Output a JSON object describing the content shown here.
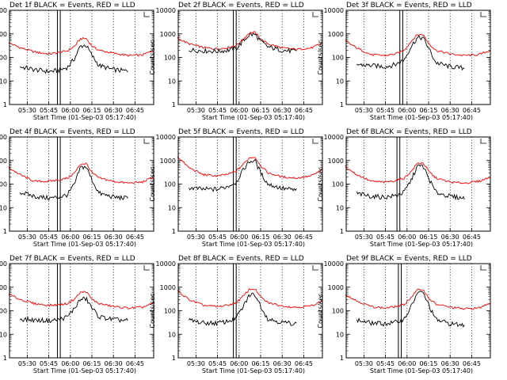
{
  "figure": {
    "ylabel": "Counts/sec",
    "xlabel": "Start Time (01-Sep-03 05:17:40)",
    "x_ticks": [
      "05:30",
      "05:45",
      "06:00",
      "06:15",
      "06:30",
      "06:45"
    ],
    "y_ticks": [
      "1",
      "10",
      "100",
      "1000",
      "10000"
    ],
    "colors": {
      "events": "#000000",
      "lld": "#ff0000",
      "axes": "#000000",
      "background": "#ffffff"
    }
  },
  "chart_data": [
    {
      "type": "line",
      "title": "Det 1f BLACK = Events, RED = LLD",
      "xlabel": "Start Time (01-Sep-03 05:17:40)",
      "ylabel": "Counts/sec",
      "yscale": "log",
      "ylim": [
        1,
        10000
      ],
      "xlim": [
        "05:17:40",
        "06:58"
      ],
      "marker_lines": [
        "05:51",
        "05:53"
      ],
      "series": [
        {
          "name": "LLD",
          "color": "#ff0000",
          "x": [
            "05:17",
            "05:25",
            "05:35",
            "05:45",
            "05:52",
            "05:58",
            "06:03",
            "06:07",
            "06:11",
            "06:15",
            "06:20",
            "06:30",
            "06:40",
            "06:50",
            "06:58"
          ],
          "values": [
            420,
            260,
            170,
            140,
            160,
            190,
            300,
            620,
            640,
            300,
            200,
            150,
            120,
            125,
            200
          ]
        },
        {
          "name": "Events",
          "color": "#000000",
          "x": [
            "05:25",
            "05:35",
            "05:45",
            "05:52",
            "05:58",
            "06:03",
            "06:07",
            "06:11",
            "06:15",
            "06:20",
            "06:30",
            "06:40"
          ],
          "values": [
            40,
            30,
            25,
            28,
            38,
            90,
            300,
            330,
            120,
            45,
            30,
            26
          ]
        }
      ]
    },
    {
      "type": "line",
      "title": "Det 2f BLACK = Events, RED = LLD",
      "xlabel": "Start Time (01-Sep-03 05:17:40)",
      "ylabel": "Counts/sec",
      "yscale": "log",
      "ylim": [
        1,
        10000
      ],
      "xlim": [
        "05:17:40",
        "06:58"
      ],
      "marker_lines": [
        "05:56",
        "05:58"
      ],
      "series": [
        {
          "name": "LLD",
          "color": "#ff0000",
          "x": [
            "05:17",
            "05:25",
            "05:35",
            "05:45",
            "05:52",
            "05:58",
            "06:03",
            "06:07",
            "06:11",
            "06:15",
            "06:20",
            "06:30",
            "06:40",
            "06:50",
            "06:58"
          ],
          "values": [
            650,
            380,
            260,
            230,
            260,
            320,
            600,
            1100,
            1150,
            600,
            380,
            250,
            220,
            250,
            400
          ]
        },
        {
          "name": "Events",
          "color": "#000000",
          "x": [
            "05:25",
            "05:35",
            "05:45",
            "05:52",
            "05:58",
            "06:03",
            "06:07",
            "06:11",
            "06:15",
            "06:20",
            "06:30",
            "06:40"
          ],
          "values": [
            210,
            190,
            180,
            200,
            240,
            500,
            900,
            950,
            480,
            280,
            200,
            180
          ]
        }
      ]
    },
    {
      "type": "line",
      "title": "Det 3f BLACK = Events, RED = LLD",
      "xlabel": "Start Time (01-Sep-03 05:17:40)",
      "ylabel": "Counts/sec",
      "yscale": "log",
      "ylim": [
        1,
        10000
      ],
      "xlim": [
        "05:17:40",
        "06:58"
      ],
      "marker_lines": [
        "05:55",
        "05:57"
      ],
      "series": [
        {
          "name": "LLD",
          "color": "#ff0000",
          "x": [
            "05:17",
            "05:25",
            "05:35",
            "05:45",
            "05:52",
            "05:58",
            "06:03",
            "06:07",
            "06:11",
            "06:15",
            "06:20",
            "06:30",
            "06:40",
            "06:50",
            "06:58"
          ],
          "values": [
            500,
            250,
            130,
            120,
            140,
            200,
            500,
            900,
            950,
            400,
            200,
            140,
            120,
            130,
            200
          ]
        },
        {
          "name": "Events",
          "color": "#000000",
          "x": [
            "05:25",
            "05:35",
            "05:45",
            "05:52",
            "05:58",
            "06:03",
            "06:07",
            "06:11",
            "06:15",
            "06:20",
            "06:30",
            "06:40"
          ],
          "values": [
            50,
            45,
            40,
            50,
            80,
            300,
            650,
            700,
            250,
            60,
            40,
            35
          ]
        }
      ]
    },
    {
      "type": "line",
      "title": "Det 4f BLACK = Events, RED = LLD",
      "xlabel": "Start Time (01-Sep-03 05:17:40)",
      "ylabel": "Counts/sec",
      "yscale": "log",
      "ylim": [
        1,
        10000
      ],
      "xlim": [
        "05:17:40",
        "06:58"
      ],
      "marker_lines": [
        "05:51",
        "05:53"
      ],
      "series": [
        {
          "name": "LLD",
          "color": "#ff0000",
          "x": [
            "05:17",
            "05:25",
            "05:35",
            "05:45",
            "05:52",
            "05:58",
            "06:03",
            "06:07",
            "06:11",
            "06:15",
            "06:20",
            "06:30",
            "06:40",
            "06:50",
            "06:58"
          ],
          "values": [
            500,
            250,
            130,
            130,
            150,
            180,
            300,
            700,
            750,
            300,
            180,
            130,
            110,
            120,
            200
          ]
        },
        {
          "name": "Events",
          "color": "#000000",
          "x": [
            "05:25",
            "05:35",
            "05:45",
            "05:52",
            "05:58",
            "06:03",
            "06:07",
            "06:11",
            "06:15",
            "06:20",
            "06:30",
            "06:40"
          ],
          "values": [
            45,
            30,
            25,
            28,
            35,
            100,
            500,
            550,
            150,
            40,
            28,
            25
          ]
        }
      ]
    },
    {
      "type": "line",
      "title": "Det 5f BLACK = Events, RED = LLD",
      "xlabel": "Start Time (01-Sep-03 05:17:40)",
      "ylabel": "Counts/sec",
      "yscale": "log",
      "ylim": [
        1,
        10000
      ],
      "xlim": [
        "05:17:40",
        "06:58"
      ],
      "marker_lines": [
        "05:56",
        "05:58"
      ],
      "series": [
        {
          "name": "LLD",
          "color": "#ff0000",
          "x": [
            "05:17",
            "05:25",
            "05:35",
            "05:45",
            "05:52",
            "05:58",
            "06:03",
            "06:07",
            "06:11",
            "06:15",
            "06:20",
            "06:30",
            "06:40",
            "06:50",
            "06:58"
          ],
          "values": [
            1500,
            500,
            250,
            220,
            260,
            350,
            700,
            1300,
            1400,
            600,
            300,
            200,
            180,
            220,
            400
          ]
        },
        {
          "name": "Events",
          "color": "#000000",
          "x": [
            "05:25",
            "05:35",
            "05:45",
            "05:52",
            "05:58",
            "06:03",
            "06:07",
            "06:11",
            "06:15",
            "06:20",
            "06:30",
            "06:40"
          ],
          "values": [
            70,
            60,
            60,
            80,
            120,
            400,
            900,
            1000,
            300,
            100,
            65,
            55
          ]
        }
      ]
    },
    {
      "type": "line",
      "title": "Det 6f BLACK = Events, RED = LLD",
      "xlabel": "Start Time (01-Sep-03 05:17:40)",
      "ylabel": "Counts/sec",
      "yscale": "log",
      "ylim": [
        1,
        10000
      ],
      "xlim": [
        "05:17:40",
        "06:58"
      ],
      "marker_lines": [
        "05:53",
        "05:55"
      ],
      "series": [
        {
          "name": "LLD",
          "color": "#ff0000",
          "x": [
            "05:17",
            "05:25",
            "05:35",
            "05:45",
            "05:52",
            "05:58",
            "06:03",
            "06:07",
            "06:11",
            "06:15",
            "06:20",
            "06:30",
            "06:40",
            "06:50",
            "06:58"
          ],
          "values": [
            550,
            250,
            130,
            120,
            140,
            180,
            350,
            750,
            800,
            350,
            180,
            120,
            110,
            130,
            200
          ]
        },
        {
          "name": "Events",
          "color": "#000000",
          "x": [
            "05:25",
            "05:35",
            "05:45",
            "05:52",
            "05:58",
            "06:03",
            "06:07",
            "06:11",
            "06:15",
            "06:20",
            "06:30",
            "06:40"
          ],
          "values": [
            40,
            30,
            28,
            32,
            45,
            150,
            550,
            600,
            180,
            45,
            30,
            25
          ]
        }
      ]
    },
    {
      "type": "line",
      "title": "Det 7f BLACK = Events, RED = LLD",
      "xlabel": "Start Time (01-Sep-03 05:17:40)",
      "ylabel": "Counts/sec",
      "yscale": "log",
      "ylim": [
        1,
        10000
      ],
      "xlim": [
        "05:17:40",
        "06:58"
      ],
      "marker_lines": [
        "05:51",
        "05:53"
      ],
      "series": [
        {
          "name": "LLD",
          "color": "#ff0000",
          "x": [
            "05:17",
            "05:25",
            "05:35",
            "05:45",
            "05:52",
            "05:58",
            "06:03",
            "06:07",
            "06:11",
            "06:15",
            "06:20",
            "06:30",
            "06:40",
            "06:50",
            "06:58"
          ],
          "values": [
            500,
            300,
            200,
            170,
            180,
            200,
            320,
            600,
            650,
            300,
            200,
            150,
            130,
            140,
            210
          ]
        },
        {
          "name": "Events",
          "color": "#000000",
          "x": [
            "05:25",
            "05:35",
            "05:45",
            "05:52",
            "05:58",
            "06:03",
            "06:07",
            "06:11",
            "06:15",
            "06:20",
            "06:30",
            "06:40"
          ],
          "values": [
            45,
            40,
            38,
            42,
            55,
            130,
            300,
            320,
            130,
            55,
            42,
            38
          ]
        }
      ]
    },
    {
      "type": "line",
      "title": "Det 8f BLACK = Events, RED = LLD",
      "xlabel": "Start Time (01-Sep-03 05:17:40)",
      "ylabel": "Counts/sec",
      "yscale": "log",
      "ylim": [
        1,
        10000
      ],
      "xlim": [
        "05:17:40",
        "06:58"
      ],
      "marker_lines": [
        "05:56",
        "05:58"
      ],
      "series": [
        {
          "name": "LLD",
          "color": "#ff0000",
          "x": [
            "05:17",
            "05:25",
            "05:35",
            "05:45",
            "05:52",
            "05:58",
            "06:03",
            "06:07",
            "06:11",
            "06:15",
            "06:20",
            "06:30",
            "06:40",
            "06:50",
            "06:58"
          ],
          "values": [
            700,
            300,
            170,
            150,
            170,
            220,
            420,
            800,
            850,
            380,
            220,
            160,
            140,
            160,
            260
          ]
        },
        {
          "name": "Events",
          "color": "#000000",
          "x": [
            "05:25",
            "05:35",
            "05:45",
            "05:52",
            "05:58",
            "06:03",
            "06:07",
            "06:11",
            "06:15",
            "06:20",
            "06:30",
            "06:40"
          ],
          "values": [
            40,
            30,
            30,
            35,
            50,
            150,
            450,
            500,
            160,
            45,
            32,
            28
          ]
        }
      ]
    },
    {
      "type": "line",
      "title": "Det 9f BLACK = Events, RED = LLD",
      "xlabel": "Start Time (01-Sep-03 05:17:40)",
      "ylabel": "Counts/sec",
      "yscale": "log",
      "ylim": [
        1,
        10000
      ],
      "xlim": [
        "05:17:40",
        "06:58"
      ],
      "marker_lines": [
        "05:54",
        "05:56"
      ],
      "series": [
        {
          "name": "LLD",
          "color": "#ff0000",
          "x": [
            "05:17",
            "05:25",
            "05:35",
            "05:45",
            "05:52",
            "05:58",
            "06:03",
            "06:07",
            "06:11",
            "06:15",
            "06:20",
            "06:30",
            "06:40",
            "06:50",
            "06:58"
          ],
          "values": [
            500,
            260,
            150,
            130,
            150,
            180,
            380,
            750,
            800,
            350,
            190,
            140,
            120,
            130,
            220
          ]
        },
        {
          "name": "Events",
          "color": "#000000",
          "x": [
            "05:25",
            "05:35",
            "05:45",
            "05:52",
            "05:58",
            "06:03",
            "06:07",
            "06:11",
            "06:15",
            "06:20",
            "06:30",
            "06:40"
          ],
          "values": [
            40,
            30,
            28,
            32,
            45,
            150,
            550,
            600,
            180,
            42,
            28,
            24
          ]
        }
      ]
    }
  ]
}
